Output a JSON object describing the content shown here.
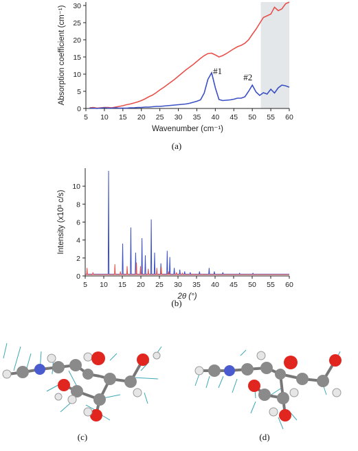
{
  "panels": {
    "a": {
      "label": "(a)"
    },
    "b": {
      "label": "(b)"
    },
    "c": {
      "label": "(c)"
    },
    "d": {
      "label": "(d)"
    }
  },
  "colors": {
    "red": "#e8504a",
    "blue": "#3a4fc4",
    "shade": "#e4e7ea",
    "axis": "#222222"
  },
  "chart_data": [
    {
      "id": "a",
      "type": "line",
      "xlabel": "Wavenumber (cm⁻¹)",
      "ylabel": "Absorption coefficient (cm⁻¹)",
      "xlim": [
        5,
        60
      ],
      "ylim": [
        0,
        31
      ],
      "xticks": [
        5,
        10,
        15,
        20,
        25,
        30,
        35,
        40,
        45,
        50,
        55,
        60
      ],
      "yticks": [
        0,
        5,
        10,
        15,
        20,
        25,
        30
      ],
      "shaded_region": [
        52.3,
        60
      ],
      "annotations": [
        {
          "text": "#1",
          "x": 40.6,
          "y": 10.0
        },
        {
          "text": "#2",
          "x": 48.8,
          "y": 8.2
        }
      ],
      "series": [
        {
          "color": "red",
          "x": [
            6,
            7,
            8,
            9,
            10,
            11,
            12,
            13,
            14,
            15,
            16,
            17,
            18,
            19,
            20,
            21,
            22,
            23,
            24,
            25,
            26,
            27,
            28,
            29,
            30,
            31,
            32,
            33,
            34,
            35,
            36,
            37,
            38,
            39,
            40,
            41,
            42,
            43,
            44,
            45,
            46,
            47,
            48,
            49,
            50,
            51,
            52,
            53,
            54,
            55,
            56,
            57,
            58,
            59,
            60
          ],
          "values": [
            0.2,
            0.3,
            0.1,
            0.2,
            0.3,
            0.3,
            0.2,
            0.4,
            0.6,
            0.8,
            1.1,
            1.3,
            1.6,
            1.9,
            2.3,
            2.8,
            3.4,
            3.9,
            4.6,
            5.4,
            6.1,
            6.9,
            7.7,
            8.5,
            9.4,
            10.3,
            11.2,
            12.0,
            12.8,
            13.7,
            14.6,
            15.4,
            16.0,
            16.1,
            15.6,
            15.0,
            15.4,
            16.0,
            16.7,
            17.4,
            18.0,
            18.4,
            19.0,
            20.0,
            21.6,
            23.1,
            24.8,
            26.5,
            27.0,
            27.5,
            29.5,
            28.5,
            29.0,
            30.5,
            31.0
          ]
        },
        {
          "color": "blue",
          "x": [
            6,
            7,
            8,
            9,
            10,
            11,
            12,
            13,
            14,
            15,
            16,
            17,
            18,
            19,
            20,
            21,
            22,
            23,
            24,
            25,
            26,
            27,
            28,
            29,
            30,
            31,
            32,
            33,
            34,
            35,
            36,
            37,
            38,
            39,
            40,
            41,
            42,
            43,
            44,
            45,
            46,
            47,
            48,
            49,
            50,
            51,
            52,
            53,
            54,
            55,
            56,
            57,
            58,
            59,
            60
          ],
          "values": [
            0.1,
            0.1,
            0.0,
            0.1,
            0.2,
            0.1,
            0.1,
            0.2,
            0.1,
            0.1,
            0.1,
            0.2,
            0.2,
            0.3,
            0.3,
            0.4,
            0.4,
            0.5,
            0.6,
            0.6,
            0.7,
            0.8,
            0.9,
            1.0,
            1.1,
            1.2,
            1.3,
            1.5,
            1.8,
            2.1,
            2.5,
            4.5,
            8.5,
            10.4,
            6.0,
            2.6,
            2.3,
            2.4,
            2.5,
            2.7,
            3.0,
            3.0,
            3.4,
            5.0,
            6.8,
            4.8,
            3.8,
            4.6,
            4.2,
            5.6,
            4.5,
            6.0,
            6.8,
            6.6,
            6.2
          ]
        }
      ]
    },
    {
      "id": "b",
      "type": "line",
      "xlabel": "2θ (°)",
      "ylabel": "Intensity (x10³ c/s)",
      "xlim": [
        5,
        60
      ],
      "ylim": [
        0,
        12
      ],
      "xticks": [
        5,
        10,
        15,
        20,
        25,
        30,
        35,
        40,
        45,
        50,
        55,
        60
      ],
      "yticks": [
        0,
        2,
        4,
        6,
        8,
        10
      ],
      "series": [
        {
          "color": "blue",
          "peaks": [
            [
              11.3,
              11.7
            ],
            [
              15.1,
              3.6
            ],
            [
              17.3,
              5.4
            ],
            [
              18.6,
              2.6
            ],
            [
              20.3,
              4.2
            ],
            [
              21.2,
              2.3
            ],
            [
              22.8,
              6.3
            ],
            [
              23.7,
              2.6
            ],
            [
              25.4,
              1.4
            ],
            [
              27.1,
              2.8
            ],
            [
              27.8,
              2.1
            ],
            [
              29.0,
              0.9
            ],
            [
              30.5,
              0.7
            ],
            [
              31.8,
              0.5
            ],
            [
              33.3,
              0.4
            ],
            [
              35.8,
              0.5
            ],
            [
              38.4,
              0.9
            ],
            [
              39.8,
              0.5
            ],
            [
              42.1,
              0.4
            ],
            [
              46.6,
              0.3
            ],
            [
              50.2,
              0.3
            ]
          ]
        },
        {
          "color": "red",
          "peaks": [
            [
              5.5,
              0.9
            ],
            [
              7.1,
              0.4
            ],
            [
              13.0,
              1.3
            ],
            [
              14.5,
              0.5
            ],
            [
              16.3,
              1.1
            ],
            [
              18.8,
              1.5
            ],
            [
              19.9,
              1.1
            ],
            [
              22.0,
              0.8
            ],
            [
              24.3,
              0.9
            ],
            [
              25.5,
              1.0
            ],
            [
              27.5,
              0.5
            ],
            [
              29.6,
              0.4
            ],
            [
              31.2,
              0.3
            ],
            [
              34.0,
              0.2
            ],
            [
              36.5,
              0.2
            ]
          ]
        }
      ]
    }
  ]
}
